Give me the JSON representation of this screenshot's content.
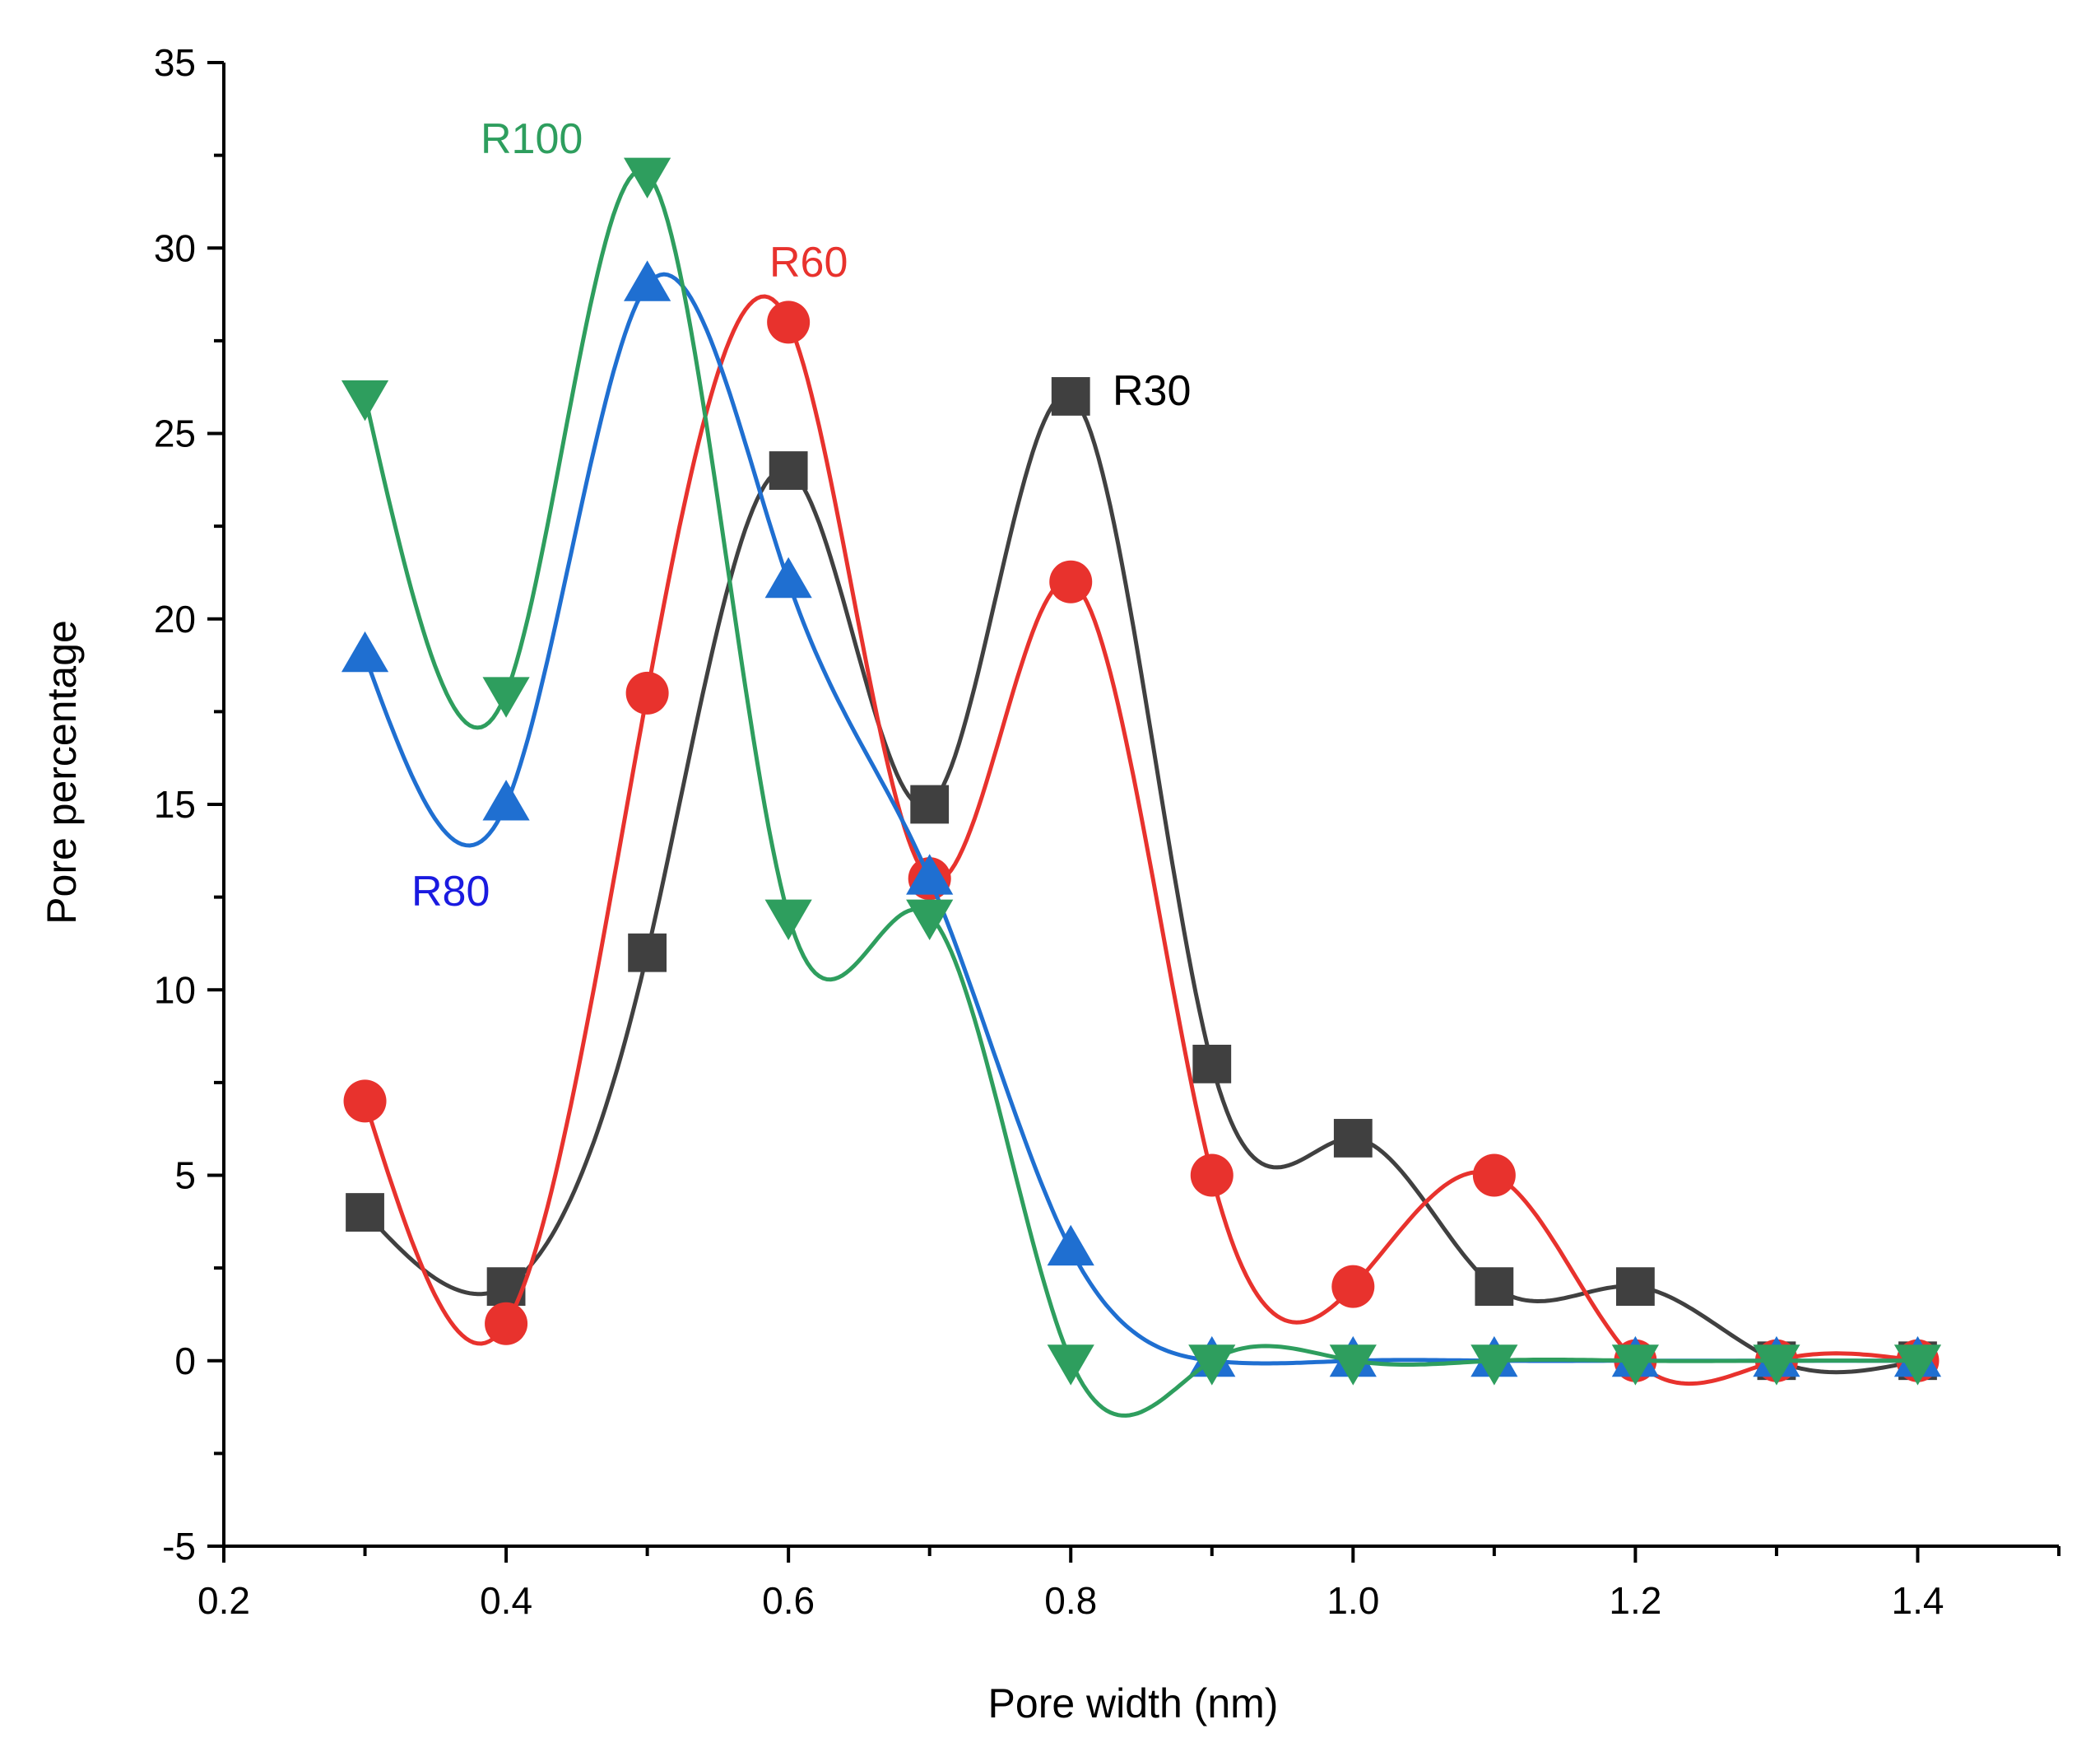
{
  "chart_data": {
    "type": "line",
    "title": "",
    "xlabel": "Pore width (nm)",
    "ylabel": "Pore percentage",
    "xlim": [
      0.2,
      1.5
    ],
    "ylim": [
      -5,
      35
    ],
    "xticks": [
      0.2,
      0.4,
      0.6,
      0.8,
      1.0,
      1.2,
      1.4
    ],
    "xtick_labels": [
      "0.2",
      "0.4",
      "0.6",
      "0.8",
      "1.0",
      "1.2",
      "1.4"
    ],
    "yticks": [
      -5,
      0,
      5,
      10,
      15,
      20,
      25,
      30,
      35
    ],
    "ytick_labels": [
      "-5",
      "0",
      "5",
      "10",
      "15",
      "20",
      "25",
      "30",
      "35"
    ],
    "grid": false,
    "x": [
      0.3,
      0.4,
      0.5,
      0.6,
      0.7,
      0.8,
      0.9,
      1.0,
      1.1,
      1.2,
      1.3,
      1.4
    ],
    "series": [
      {
        "name": "R30",
        "color": "#404040",
        "marker": "square",
        "values": [
          4,
          2,
          11,
          24,
          15,
          26,
          8,
          6,
          2,
          2,
          0,
          0
        ]
      },
      {
        "name": "R60",
        "color": "#e8322d",
        "marker": "circle",
        "values": [
          7,
          1,
          18,
          28,
          13,
          21,
          5,
          2,
          5,
          0,
          0,
          0
        ]
      },
      {
        "name": "R80",
        "color": "#1f6fd1",
        "marker": "triangle-up",
        "values": [
          19,
          15,
          29,
          21,
          13,
          3,
          0,
          0,
          0,
          0,
          0,
          0
        ]
      },
      {
        "name": "R100",
        "color": "#2e9e5e",
        "marker": "triangle-down",
        "values": [
          26,
          18,
          32,
          12,
          12,
          0,
          0,
          0,
          0,
          0,
          0,
          0
        ]
      }
    ],
    "annotations": [
      {
        "text": "R30",
        "series": "R30",
        "color": "#000000"
      },
      {
        "text": "R60",
        "series": "R60",
        "color": "#e8322d"
      },
      {
        "text": "R80",
        "series": "R80",
        "color": "#1a1ae0"
      },
      {
        "text": "R100",
        "series": "R100",
        "color": "#2e9e5e"
      }
    ]
  }
}
